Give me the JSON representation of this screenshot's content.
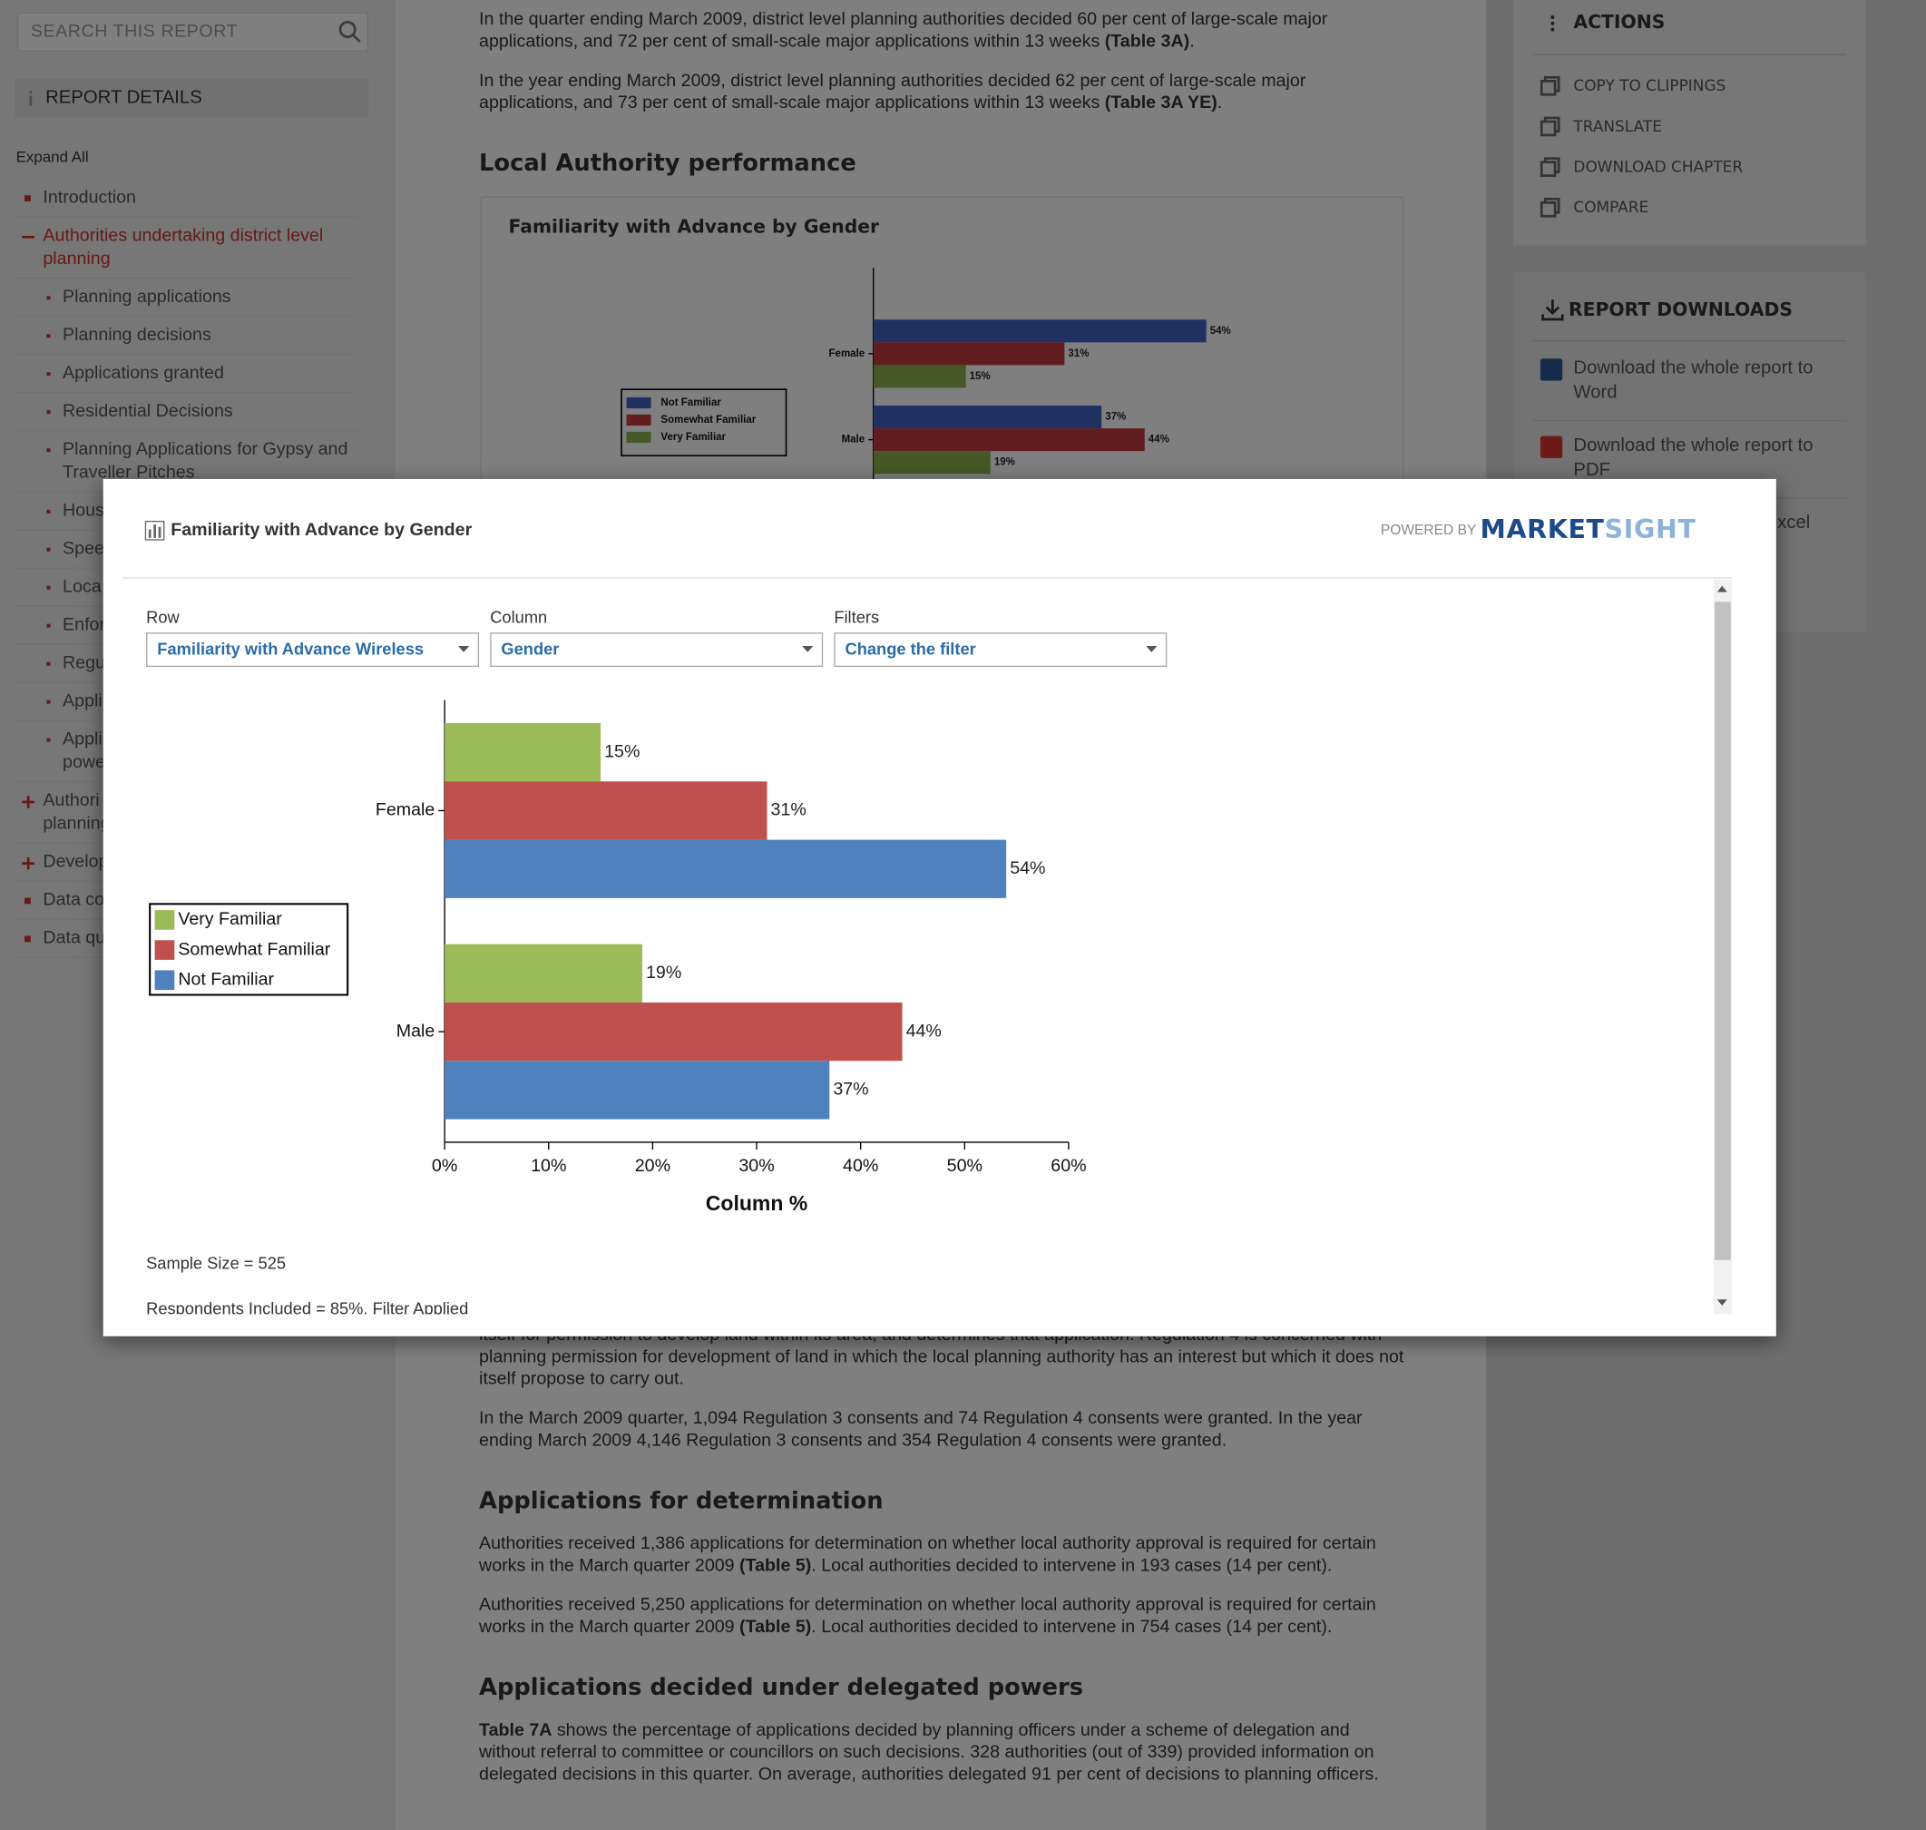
{
  "sidebar": {
    "search_placeholder": "SEARCH THIS REPORT",
    "report_details": "REPORT DETAILS",
    "expand_all": "Expand All",
    "nav": [
      {
        "label": "Introduction"
      },
      {
        "label": "Authorities undertaking district level planning",
        "active": true,
        "children": [
          "Planning applications",
          "Planning decisions",
          "Applications granted",
          "Residential Decisions",
          "Planning Applications for Gypsy and Traveller Pitches",
          "Hous",
          "Spee",
          "Loca",
          "Enfor",
          "Regu",
          "Appli",
          "Appli\npowe"
        ]
      },
      {
        "label": "Authori\nplanning",
        "collapsed": true
      },
      {
        "label": "Develop",
        "collapsed": true
      },
      {
        "label": "Data co"
      },
      {
        "label": "Data qu"
      }
    ]
  },
  "main": {
    "top": [
      {
        "p": [
          {
            "t": "In the quarter ending March 2009, district level planning authorities decided 60 per cent of large-scale major applications, and 72 per cent of small-scale major applications within 13 weeks "
          },
          {
            "b": "(Table 3A)"
          },
          {
            "t": "."
          }
        ]
      },
      {
        "p": [
          {
            "t": "In the year ending March 2009, district level planning authorities decided 62 per cent of large-scale major applications, and 73 per cent of small-scale major applications within 13 weeks "
          },
          {
            "b": "(Table 3A YE)"
          },
          {
            "t": "."
          }
        ]
      },
      {
        "h": "Local Authority performance"
      }
    ],
    "bottom": [
      {
        "p": [
          {
            "t": "itself for permission to develop land within its area, and determines that application. Regulation 4 is concerned with planning permission for development of land in which the local planning authority has an interest but which it does not itself propose to carry out."
          }
        ]
      },
      {
        "p": [
          {
            "t": "In the March 2009 quarter, 1,094 Regulation 3 consents and 74 Regulation 4 consents were granted. In the year ending March 2009 4,146 Regulation 3 consents and 354 Regulation 4 consents were granted."
          }
        ]
      },
      {
        "h": "Applications for determination"
      },
      {
        "p": [
          {
            "t": "Authorities received 1,386 applications for determination on whether local authority approval is required for certain works in the March quarter 2009 "
          },
          {
            "b": "(Table 5)"
          },
          {
            "t": ". Local authorities decided to intervene in 193 cases (14 per cent)."
          }
        ]
      },
      {
        "p": [
          {
            "t": "Authorities received 5,250 applications for determination on whether local authority approval is required for certain works in the March quarter 2009 "
          },
          {
            "b": "(Table 5)"
          },
          {
            "t": ". Local authorities decided to intervene in 754 cases (14 per cent)."
          }
        ]
      },
      {
        "h": "Applications decided under delegated powers"
      },
      {
        "p": [
          {
            "b": "Table 7A"
          },
          {
            "t": " shows the percentage of applications decided by planning officers under a scheme of delegation and without referral to committee or councillors on such decisions. 328 authorities (out of 339) provided information on delegated decisions in this quarter. On average, authorities delegated 91 per cent of decisions to planning officers."
          }
        ]
      }
    ]
  },
  "actions": {
    "title": "ACTIONS",
    "items": [
      "COPY TO CLIPPINGS",
      "TRANSLATE",
      "DOWNLOAD CHAPTER",
      "COMPARE"
    ]
  },
  "downloads": {
    "title": "REPORT DOWNLOADS",
    "items": [
      "Download the whole report to Word",
      "Download the whole report to PDF",
      "xcel"
    ]
  },
  "modal": {
    "title": "Familiarity with Advance by Gender",
    "powered_by": "POWERED BY",
    "brand": [
      "MARKET",
      "SIGHT"
    ],
    "controls": [
      {
        "label": "Row",
        "value": "Familiarity with Advance Wireless"
      },
      {
        "label": "Column",
        "value": "Gender"
      },
      {
        "label": "Filters",
        "value": "Change the filter"
      }
    ],
    "sample_size": "Sample Size = 525",
    "respondents": "Respondents Included = 85%, Filter Applied"
  },
  "chart_data": [
    {
      "type": "bar",
      "orientation": "horizontal",
      "categories": [
        "Female",
        "Male"
      ],
      "series": [
        {
          "name": "Very Familiar",
          "color": "#9bbb59",
          "values": [
            15,
            19
          ],
          "value_labels": [
            "15%",
            "19%"
          ]
        },
        {
          "name": "Somewhat Familiar",
          "color": "#c0504d",
          "values": [
            31,
            44
          ],
          "value_labels": [
            "31%",
            "44%"
          ]
        },
        {
          "name": "Not Familiar",
          "color": "#4f81bd",
          "values": [
            54,
            37
          ],
          "value_labels": [
            "54%",
            "37%"
          ]
        }
      ],
      "xlabel": "Column %",
      "xlim": [
        0,
        60
      ],
      "xticks": [
        {
          "value": 0,
          "label": "0%"
        },
        {
          "value": 10,
          "label": "10%"
        },
        {
          "value": 20,
          "label": "20%"
        },
        {
          "value": 30,
          "label": "30%"
        },
        {
          "value": 40,
          "label": "40%"
        },
        {
          "value": 50,
          "label": "50%"
        },
        {
          "value": 60,
          "label": "60%"
        }
      ],
      "legend": "left"
    },
    {
      "type": "bar",
      "orientation": "horizontal",
      "title": "Familiarity with Advance by Gender",
      "categories": [
        "Female",
        "Male"
      ],
      "series": [
        {
          "name": "Not Familiar",
          "color": "#4365c4",
          "values": [
            54,
            37
          ],
          "value_labels": [
            "54%",
            "37%"
          ]
        },
        {
          "name": "Somewhat Familiar",
          "color": "#c43b40",
          "values": [
            31,
            44
          ],
          "value_labels": [
            "31%",
            "44%"
          ]
        },
        {
          "name": "Very Familiar",
          "color": "#8db04a",
          "values": [
            15,
            19
          ],
          "value_labels": [
            "15%",
            "19%"
          ]
        }
      ],
      "xlim": [
        0,
        100
      ],
      "legend": "left"
    }
  ]
}
